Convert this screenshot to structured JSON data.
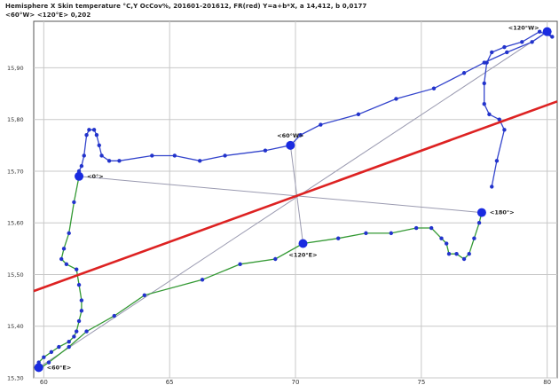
{
  "header": {
    "title": "Hemisphere X Skin temperature °C,Y OcCov%, 201601-201612, FR(red) Y=a+b*X, a 14,412, b 0,0177",
    "subtitle": "<60°W> <120°E> 0,202"
  },
  "chart_data": {
    "type": "line",
    "title": "Hemisphere X Skin temperature °C,Y OcCov%, 201601-201612, FR(red) Y=a+b*X, a 14,412, b 0,0177",
    "subtitle": "<60°W> <120°E> 0,202",
    "xlabel": "",
    "ylabel": "",
    "xlim": [
      59.6,
      80.4
    ],
    "ylim": [
      15.3,
      15.99
    ],
    "x_ticks": [
      60,
      65,
      70,
      75,
      80
    ],
    "x_tick_labels": [
      "60",
      "65",
      "70",
      "75",
      "80"
    ],
    "y_ticks": [
      15.3,
      15.4,
      15.5,
      15.6,
      15.7,
      15.8,
      15.9
    ],
    "y_tick_labels": [
      "15,30",
      "15,40",
      "15,50",
      "15,60",
      "15,70",
      "15,80",
      "15,90"
    ],
    "grid": true,
    "series": [
      {
        "color": "#3344cc",
        "points": [
          [
            77.8,
            15.67
          ],
          [
            78.0,
            15.72
          ],
          [
            78.3,
            15.78
          ],
          [
            78.1,
            15.8
          ],
          [
            77.7,
            15.81
          ],
          [
            77.5,
            15.83
          ],
          [
            77.5,
            15.87
          ],
          [
            77.6,
            15.91
          ],
          [
            77.8,
            15.93
          ],
          [
            78.3,
            15.94
          ],
          [
            79.0,
            15.95
          ],
          [
            79.7,
            15.97
          ],
          [
            80.2,
            15.96
          ],
          [
            80.0,
            15.97
          ],
          [
            79.4,
            15.95
          ],
          [
            78.4,
            15.93
          ],
          [
            77.5,
            15.91
          ],
          [
            76.7,
            15.89
          ],
          [
            75.5,
            15.86
          ],
          [
            74.0,
            15.84
          ],
          [
            72.5,
            15.81
          ],
          [
            71.0,
            15.79
          ],
          [
            70.2,
            15.77
          ],
          [
            69.8,
            15.75
          ],
          [
            68.8,
            15.74
          ],
          [
            67.2,
            15.73
          ],
          [
            66.2,
            15.72
          ],
          [
            65.2,
            15.73
          ],
          [
            64.3,
            15.73
          ],
          [
            63.0,
            15.72
          ],
          [
            62.6,
            15.72
          ],
          [
            62.3,
            15.73
          ],
          [
            62.2,
            15.75
          ],
          [
            62.1,
            15.77
          ],
          [
            62.0,
            15.78
          ],
          [
            61.8,
            15.78
          ],
          [
            61.7,
            15.77
          ],
          [
            61.6,
            15.73
          ],
          [
            61.5,
            15.71
          ],
          [
            61.4,
            15.7
          ],
          [
            61.4,
            15.69
          ]
        ]
      },
      {
        "color": "#339933",
        "points": [
          [
            61.4,
            15.69
          ],
          [
            61.2,
            15.64
          ],
          [
            61.0,
            15.58
          ],
          [
            60.8,
            15.55
          ],
          [
            60.7,
            15.53
          ],
          [
            60.9,
            15.52
          ],
          [
            61.3,
            15.51
          ],
          [
            61.4,
            15.48
          ],
          [
            61.5,
            15.45
          ],
          [
            61.5,
            15.43
          ],
          [
            61.4,
            15.41
          ],
          [
            61.3,
            15.39
          ],
          [
            61.2,
            15.38
          ],
          [
            61.0,
            15.37
          ],
          [
            60.6,
            15.36
          ],
          [
            60.3,
            15.35
          ],
          [
            60.0,
            15.34
          ],
          [
            59.8,
            15.33
          ],
          [
            59.7,
            15.32
          ],
          [
            59.9,
            15.32
          ],
          [
            60.2,
            15.33
          ],
          [
            61.0,
            15.36
          ],
          [
            61.7,
            15.39
          ],
          [
            62.8,
            15.42
          ],
          [
            64.0,
            15.46
          ],
          [
            66.3,
            15.49
          ],
          [
            67.8,
            15.52
          ],
          [
            69.2,
            15.53
          ],
          [
            70.3,
            15.56
          ],
          [
            71.7,
            15.57
          ],
          [
            72.8,
            15.58
          ],
          [
            73.8,
            15.58
          ],
          [
            74.8,
            15.59
          ],
          [
            75.4,
            15.59
          ],
          [
            75.8,
            15.57
          ],
          [
            76.0,
            15.56
          ],
          [
            76.1,
            15.54
          ],
          [
            76.4,
            15.54
          ],
          [
            76.7,
            15.53
          ],
          [
            76.9,
            15.54
          ],
          [
            77.1,
            15.57
          ],
          [
            77.3,
            15.6
          ],
          [
            77.4,
            15.62
          ]
        ]
      }
    ],
    "markers": [
      {
        "label": "<120°W>",
        "x": 80.0,
        "y": 15.97,
        "label_pos": "left-above"
      },
      {
        "label": "<60°W>",
        "x": 69.8,
        "y": 15.75,
        "label_pos": "above"
      },
      {
        "label": "<0°>",
        "x": 61.4,
        "y": 15.69,
        "label_pos": "right"
      },
      {
        "label": "<180°>",
        "x": 77.4,
        "y": 15.62,
        "label_pos": "right"
      },
      {
        "label": "<120°E>",
        "x": 70.3,
        "y": 15.56,
        "label_pos": "below"
      },
      {
        "label": "<60°E>",
        "x": 59.8,
        "y": 15.32,
        "label_pos": "right"
      }
    ],
    "connectors": [
      {
        "from": "<120°W>",
        "to": "<60°E>"
      },
      {
        "from": "<60°W>",
        "to": "<120°E>"
      },
      {
        "from": "<0°>",
        "to": "<180°>"
      }
    ],
    "regression": {
      "color": "#dd2222",
      "points": [
        [
          59.6,
          15.468
        ],
        [
          80.4,
          15.835
        ]
      ]
    }
  }
}
